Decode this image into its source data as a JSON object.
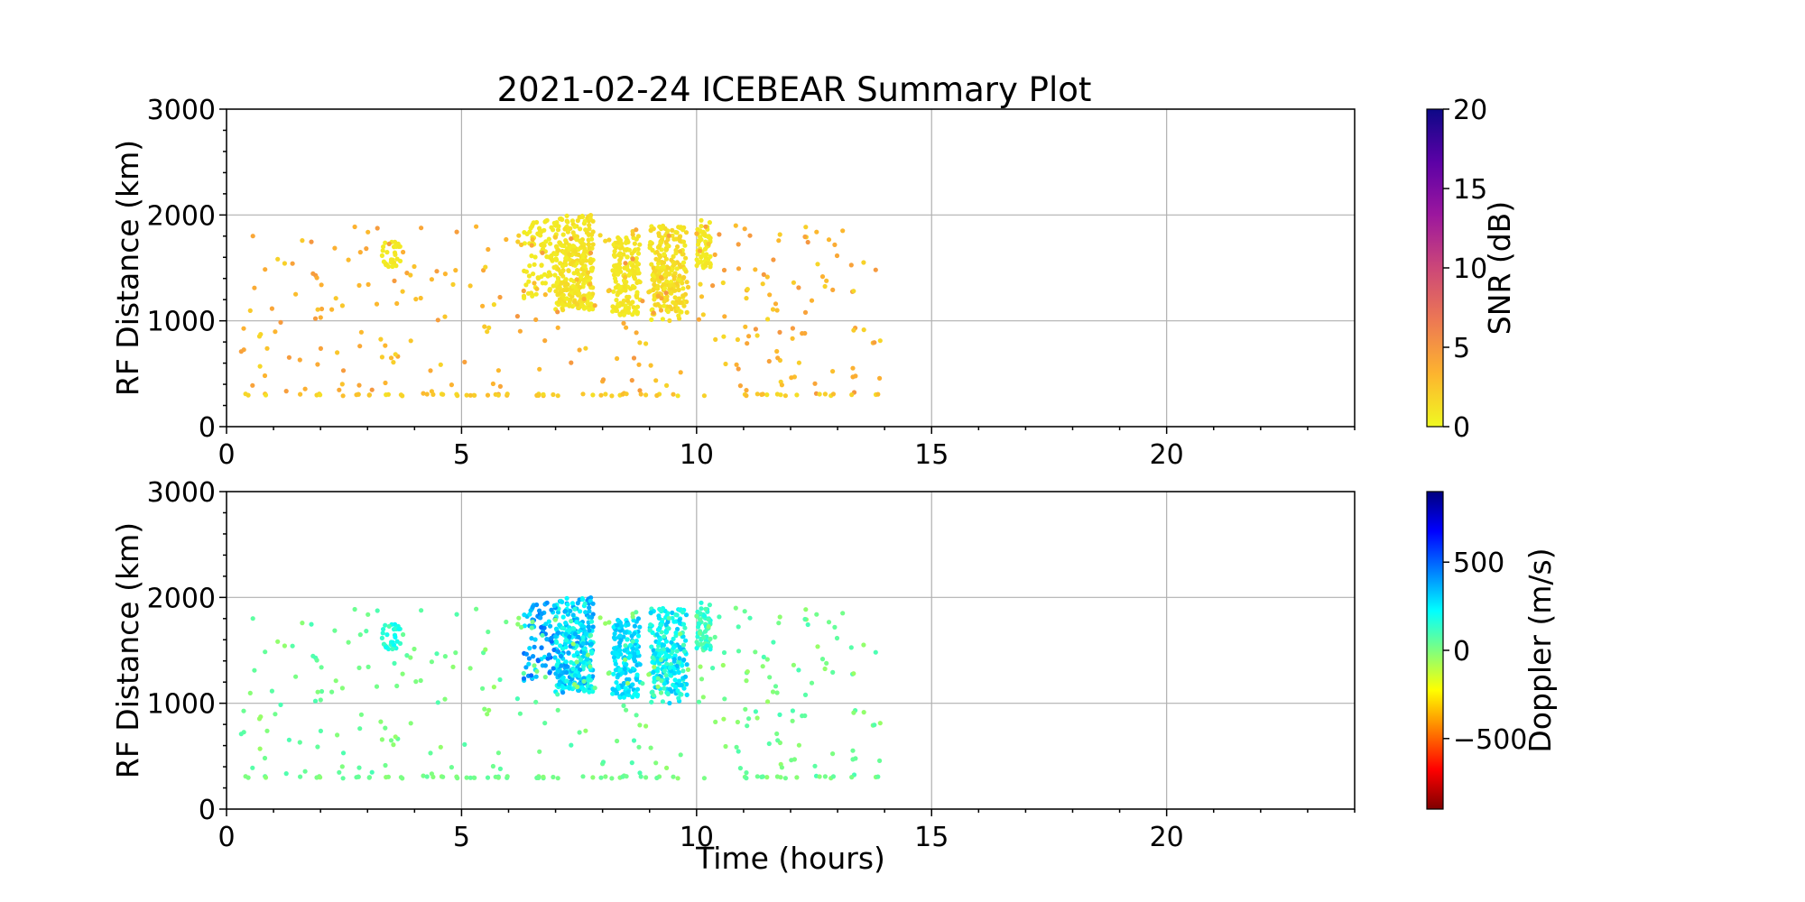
{
  "chart_data": [
    {
      "type": "scatter",
      "title": "2021-02-24 ICEBEAR Summary Plot",
      "xlabel": "",
      "ylabel": "RF Distance (km)",
      "xlim": [
        0,
        24
      ],
      "ylim": [
        0,
        3000
      ],
      "xticks": [
        0,
        5,
        10,
        15,
        20
      ],
      "yticks": [
        0,
        1000,
        2000,
        3000
      ],
      "xtick_labels": [
        "0",
        "5",
        "10",
        "15",
        "20"
      ],
      "ytick_labels": [
        "0",
        "1000",
        "2000",
        "3000"
      ],
      "grid": true,
      "colorbar": {
        "label": "SNR (dB)",
        "range": [
          0,
          20
        ],
        "ticks": [
          0,
          5,
          10,
          15,
          20
        ],
        "tick_labels": [
          "0",
          "5",
          "10",
          "15",
          "20"
        ],
        "colormap": "plasma_r",
        "colors": [
          "#f0f921",
          "#fdb42f",
          "#ed7953",
          "#cc4778",
          "#9c179e",
          "#5c01a6",
          "#0d0887"
        ]
      },
      "clusters": [
        {
          "t": [
            7.0,
            7.8
          ],
          "r": [
            1100,
            2000
          ],
          "n": 300,
          "c": [
            0.5,
            1.5
          ]
        },
        {
          "t": [
            8.2,
            8.8
          ],
          "r": [
            1050,
            1800
          ],
          "n": 160,
          "c": [
            0.5,
            1.2
          ]
        },
        {
          "t": [
            9.0,
            9.8
          ],
          "r": [
            1000,
            1900
          ],
          "n": 230,
          "c": [
            0.5,
            2.0
          ]
        },
        {
          "t": [
            10.0,
            10.3
          ],
          "r": [
            1500,
            1950
          ],
          "n": 60,
          "c": [
            0.5,
            1.0
          ]
        },
        {
          "t": [
            6.3,
            7.0
          ],
          "r": [
            1200,
            1950
          ],
          "n": 80,
          "c": [
            0.5,
            1.0
          ]
        },
        {
          "t": [
            3.3,
            3.7
          ],
          "r": [
            1500,
            1750
          ],
          "n": 30,
          "c": [
            0.5,
            1.0
          ]
        },
        {
          "t": [
            0.3,
            14.0
          ],
          "r": [
            300,
            1900
          ],
          "n": 280,
          "c": [
            1.5,
            5.0
          ]
        },
        {
          "t": [
            0.4,
            14.0
          ],
          "r": [
            290,
            310
          ],
          "n": 70,
          "c": [
            1.0,
            3.0
          ]
        }
      ]
    },
    {
      "type": "scatter",
      "title": "",
      "xlabel": "Time (hours)",
      "ylabel": "RF Distance (km)",
      "xlim": [
        0,
        24
      ],
      "ylim": [
        0,
        3000
      ],
      "xticks": [
        0,
        5,
        10,
        15,
        20
      ],
      "yticks": [
        0,
        1000,
        2000,
        3000
      ],
      "xtick_labels": [
        "0",
        "5",
        "10",
        "15",
        "20"
      ],
      "ytick_labels": [
        "0",
        "1000",
        "2000",
        "3000"
      ],
      "grid": true,
      "colorbar": {
        "label": "Doppler (m/s)",
        "range": [
          -900,
          900
        ],
        "ticks": [
          -500,
          0,
          500
        ],
        "tick_labels": [
          "−500",
          "0",
          "500"
        ],
        "colormap": "jet_r",
        "colors": [
          "#7f0000",
          "#ff0000",
          "#ff7f00",
          "#ffff00",
          "#7fff7f",
          "#00ffff",
          "#007fff",
          "#0000ff",
          "#00007f"
        ]
      },
      "clusters": [
        {
          "t": [
            7.0,
            7.8
          ],
          "r": [
            1100,
            2000
          ],
          "n": 300,
          "c": [
            150,
            420
          ]
        },
        {
          "t": [
            8.2,
            8.8
          ],
          "r": [
            1050,
            1800
          ],
          "n": 160,
          "c": [
            200,
            350
          ]
        },
        {
          "t": [
            9.0,
            9.8
          ],
          "r": [
            1000,
            1900
          ],
          "n": 230,
          "c": [
            100,
            350
          ]
        },
        {
          "t": [
            10.0,
            10.3
          ],
          "r": [
            1500,
            1950
          ],
          "n": 60,
          "c": [
            50,
            200
          ]
        },
        {
          "t": [
            6.3,
            7.0
          ],
          "r": [
            1200,
            1950
          ],
          "n": 80,
          "c": [
            250,
            500
          ]
        },
        {
          "t": [
            3.3,
            3.7
          ],
          "r": [
            1500,
            1750
          ],
          "n": 30,
          "c": [
            100,
            250
          ]
        },
        {
          "t": [
            0.3,
            14.0
          ],
          "r": [
            300,
            1900
          ],
          "n": 280,
          "c": [
            -50,
            100
          ]
        },
        {
          "t": [
            0.4,
            14.0
          ],
          "r": [
            290,
            310
          ],
          "n": 70,
          "c": [
            -30,
            60
          ]
        }
      ]
    }
  ]
}
